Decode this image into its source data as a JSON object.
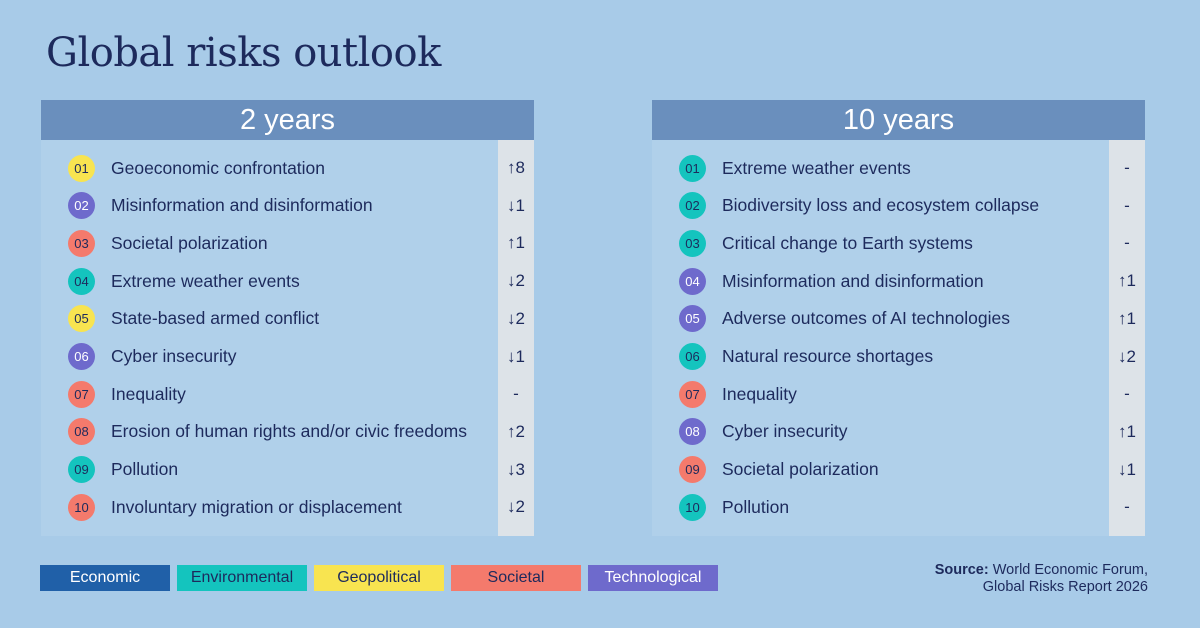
{
  "title": "Global risks outlook",
  "colors": {
    "Economic": "#2060a8",
    "Environmental": "#14c4be",
    "Geopolitical": "#f8e450",
    "Societal": "#f47a6c",
    "Technological": "#6e6acc"
  },
  "panels": [
    {
      "heading": "2 years",
      "items": [
        {
          "rank": "01",
          "label": "Geoeconomic confrontation",
          "category": "Geopolitical",
          "change": "↑8"
        },
        {
          "rank": "02",
          "label": "Misinformation and disinformation",
          "category": "Technological",
          "change": "↓1"
        },
        {
          "rank": "03",
          "label": "Societal polarization",
          "category": "Societal",
          "change": "↑1"
        },
        {
          "rank": "04",
          "label": "Extreme weather events",
          "category": "Environmental",
          "change": "↓2"
        },
        {
          "rank": "05",
          "label": "State-based armed conflict",
          "category": "Geopolitical",
          "change": "↓2"
        },
        {
          "rank": "06",
          "label": "Cyber insecurity",
          "category": "Technological",
          "change": "↓1"
        },
        {
          "rank": "07",
          "label": "Inequality",
          "category": "Societal",
          "change": "-"
        },
        {
          "rank": "08",
          "label": "Erosion of human rights and/or civic freedoms",
          "category": "Societal",
          "change": "↑2"
        },
        {
          "rank": "09",
          "label": "Pollution",
          "category": "Environmental",
          "change": "↓3"
        },
        {
          "rank": "10",
          "label": "Involuntary migration or displacement",
          "category": "Societal",
          "change": "↓2"
        }
      ]
    },
    {
      "heading": "10 years",
      "items": [
        {
          "rank": "01",
          "label": "Extreme weather events",
          "category": "Environmental",
          "change": "-"
        },
        {
          "rank": "02",
          "label": "Biodiversity loss and ecosystem collapse",
          "category": "Environmental",
          "change": "-"
        },
        {
          "rank": "03",
          "label": "Critical change to Earth systems",
          "category": "Environmental",
          "change": "-"
        },
        {
          "rank": "04",
          "label": "Misinformation and disinformation",
          "category": "Technological",
          "change": "↑1"
        },
        {
          "rank": "05",
          "label": "Adverse outcomes of AI technologies",
          "category": "Technological",
          "change": "↑1"
        },
        {
          "rank": "06",
          "label": "Natural resource shortages",
          "category": "Environmental",
          "change": "↓2"
        },
        {
          "rank": "07",
          "label": "Inequality",
          "category": "Societal",
          "change": "-"
        },
        {
          "rank": "08",
          "label": "Cyber insecurity",
          "category": "Technological",
          "change": "↑1"
        },
        {
          "rank": "09",
          "label": "Societal polarization",
          "category": "Societal",
          "change": "↓1"
        },
        {
          "rank": "10",
          "label": "Pollution",
          "category": "Environmental",
          "change": "-"
        }
      ]
    }
  ],
  "legend": [
    "Economic",
    "Environmental",
    "Geopolitical",
    "Societal",
    "Technological"
  ],
  "source": {
    "label": "Source:",
    "line1": "World Economic Forum,",
    "line2": "Global Risks Report 2026"
  }
}
